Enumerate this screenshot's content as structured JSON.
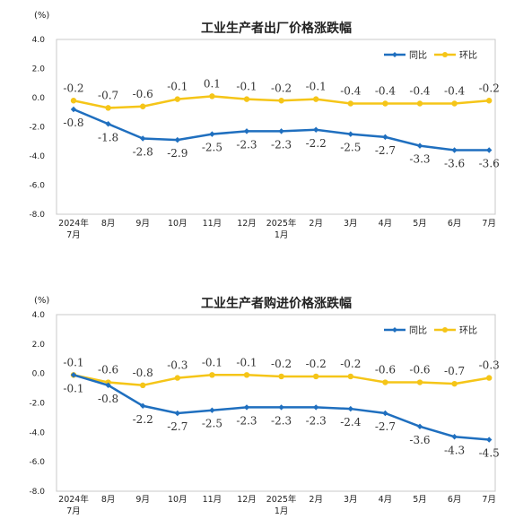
{
  "colors": {
    "yoy": "#1f6fbf",
    "mom": "#f5c518",
    "axis": "#c8c8c8"
  },
  "chart_data": [
    {
      "type": "line",
      "title": "工业生产者出厂价格涨跌幅",
      "unit_label": "(%)",
      "categories": [
        [
          "2024年",
          "7月"
        ],
        [
          "8月"
        ],
        [
          "9月"
        ],
        [
          "10月"
        ],
        [
          "11月"
        ],
        [
          "12月"
        ],
        [
          "2025年",
          "1月"
        ],
        [
          "2月"
        ],
        [
          "3月"
        ],
        [
          "4月"
        ],
        [
          "5月"
        ],
        [
          "6月"
        ],
        [
          "7月"
        ]
      ],
      "ylim": [
        -8.0,
        4.0
      ],
      "yticks": [
        "4.0",
        "2.0",
        "0.0",
        "-2.0",
        "-4.0",
        "-6.0",
        "-8.0"
      ],
      "legend_position": "top-right",
      "series": [
        {
          "name": "同比",
          "color": "#1f6fbf",
          "values": [
            -0.8,
            -1.8,
            -2.8,
            -2.9,
            -2.5,
            -2.3,
            -2.3,
            -2.2,
            -2.5,
            -2.7,
            -3.3,
            -3.6,
            -3.6
          ],
          "labels": [
            "-0.8",
            "-1.8",
            "-2.8",
            "-2.9",
            "-2.5",
            "-2.3",
            "-2.3",
            "-2.2",
            "-2.5",
            "-2.7",
            "-3.3",
            "-3.6",
            "-3.6"
          ]
        },
        {
          "name": "环比",
          "color": "#f5c518",
          "values": [
            -0.2,
            -0.7,
            -0.6,
            -0.1,
            0.1,
            -0.1,
            -0.2,
            -0.1,
            -0.4,
            -0.4,
            -0.4,
            -0.4,
            -0.2
          ],
          "labels": [
            "-0.2",
            "-0.7",
            "-0.6",
            "-0.1",
            "0.1",
            "-0.1",
            "-0.2",
            "-0.1",
            "-0.4",
            "-0.4",
            "-0.4",
            "-0.4",
            "-0.2"
          ]
        }
      ]
    },
    {
      "type": "line",
      "title": "工业生产者购进价格涨跌幅",
      "unit_label": "(%)",
      "categories": [
        [
          "2024年",
          "7月"
        ],
        [
          "8月"
        ],
        [
          "9月"
        ],
        [
          "10月"
        ],
        [
          "11月"
        ],
        [
          "12月"
        ],
        [
          "2025年",
          "1月"
        ],
        [
          "2月"
        ],
        [
          "3月"
        ],
        [
          "4月"
        ],
        [
          "5月"
        ],
        [
          "6月"
        ],
        [
          "7月"
        ]
      ],
      "ylim": [
        -8.0,
        4.0
      ],
      "yticks": [
        "4.0",
        "2.0",
        "0.0",
        "-2.0",
        "-4.0",
        "-6.0",
        "-8.0"
      ],
      "legend_position": "top-right",
      "series": [
        {
          "name": "同比",
          "color": "#1f6fbf",
          "values": [
            -0.1,
            -0.8,
            -2.2,
            -2.7,
            -2.5,
            -2.3,
            -2.3,
            -2.3,
            -2.4,
            -2.7,
            -3.6,
            -4.3,
            -4.5
          ],
          "labels": [
            "-0.1",
            "-0.8",
            "-2.2",
            "-2.7",
            "-2.5",
            "-2.3",
            "-2.3",
            "-2.3",
            "-2.4",
            "-2.7",
            "-3.6",
            "-4.3",
            "-4.5"
          ]
        },
        {
          "name": "环比",
          "color": "#f5c518",
          "values": [
            -0.1,
            -0.6,
            -0.8,
            -0.3,
            -0.1,
            -0.1,
            -0.2,
            -0.2,
            -0.2,
            -0.6,
            -0.6,
            -0.7,
            -0.3
          ],
          "labels": [
            "-0.1",
            "-0.6",
            "-0.8",
            "-0.3",
            "-0.1",
            "-0.1",
            "-0.2",
            "-0.2",
            "-0.2",
            "-0.6",
            "-0.6",
            "-0.7",
            "-0.3"
          ]
        }
      ]
    }
  ]
}
